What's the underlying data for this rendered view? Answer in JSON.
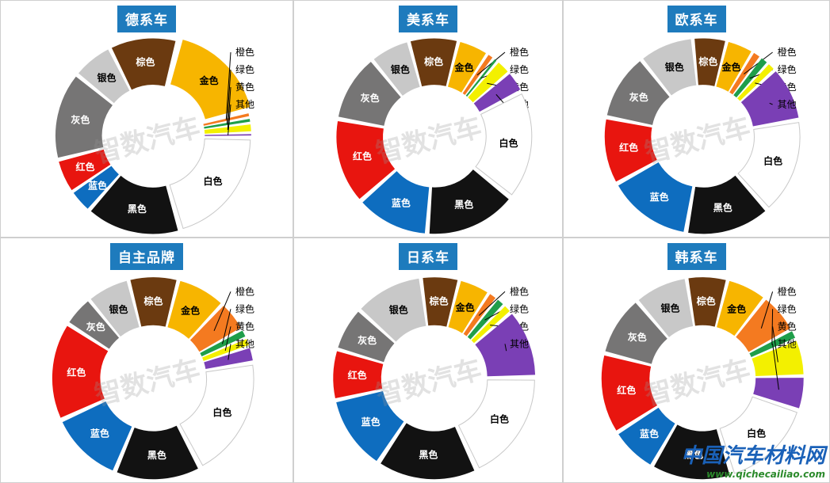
{
  "watermark": "智数汽车",
  "brand": {
    "name": "中国汽车材料网",
    "url": "www.qichecailiao.com"
  },
  "colors": {
    "金色": "#f7b500",
    "橙色": "#f47a20",
    "绿色": "#1f9e4a",
    "黄色": "#f3f000",
    "其他": "#7a3fb5",
    "白色": "#ffffff",
    "黑色": "#121212",
    "蓝色": "#0e6dbf",
    "红色": "#e8150f",
    "灰色": "#767575",
    "银色": "#c8c8c8",
    "棕色": "#6b3a10"
  },
  "chart_data": [
    {
      "type": "pie",
      "title": "德系车",
      "categories": [
        "金色",
        "橙色",
        "绿色",
        "黄色",
        "其他",
        "白色",
        "黑色",
        "蓝色",
        "红色",
        "灰色",
        "银色",
        "棕色"
      ],
      "values": [
        15,
        0.8,
        0.8,
        1.4,
        0.6,
        18,
        14,
        3.5,
        5,
        13,
        6,
        10
      ],
      "explode": "金色"
    },
    {
      "type": "pie",
      "title": "美系车",
      "categories": [
        "金色",
        "橙色",
        "绿色",
        "黄色",
        "其他",
        "白色",
        "黑色",
        "蓝色",
        "红色",
        "灰色",
        "银色",
        "棕色"
      ],
      "values": [
        5,
        1.2,
        0.8,
        2.5,
        3.5,
        18,
        15,
        12,
        14,
        11,
        6.5,
        8
      ]
    },
    {
      "type": "pie",
      "title": "欧系车",
      "categories": [
        "金色",
        "橙色",
        "绿色",
        "黄色",
        "其他",
        "白色",
        "黑色",
        "蓝色",
        "红色",
        "灰色",
        "银色",
        "棕色"
      ],
      "values": [
        4.5,
        1.5,
        1.5,
        1.5,
        9,
        16,
        14,
        14,
        11,
        11,
        9,
        5.5
      ]
    },
    {
      "type": "pie",
      "title": "自主品牌",
      "categories": [
        "金色",
        "橙色",
        "绿色",
        "黄色",
        "其他",
        "白色",
        "黑色",
        "蓝色",
        "红色",
        "灰色",
        "银色",
        "棕色"
      ],
      "values": [
        8,
        5,
        1.5,
        1.5,
        2.5,
        20,
        14,
        12,
        16,
        5,
        7,
        8
      ]
    },
    {
      "type": "pie",
      "title": "日系车",
      "categories": [
        "金色",
        "橙色",
        "绿色",
        "黄色",
        "其他",
        "白色",
        "黑色",
        "蓝色",
        "红色",
        "灰色",
        "银色",
        "棕色"
      ],
      "values": [
        5,
        1.5,
        1.5,
        1.5,
        11,
        18,
        16,
        12,
        8,
        7,
        11,
        6
      ]
    },
    {
      "type": "pie",
      "title": "韩系车",
      "categories": [
        "金色",
        "橙色",
        "绿色",
        "黄色",
        "其他",
        "白色",
        "黑色",
        "蓝色",
        "红色",
        "灰色",
        "银色",
        "棕色"
      ],
      "values": [
        6,
        6,
        1.5,
        5.5,
        5,
        14,
        12,
        7,
        12,
        9,
        8,
        6
      ]
    }
  ]
}
